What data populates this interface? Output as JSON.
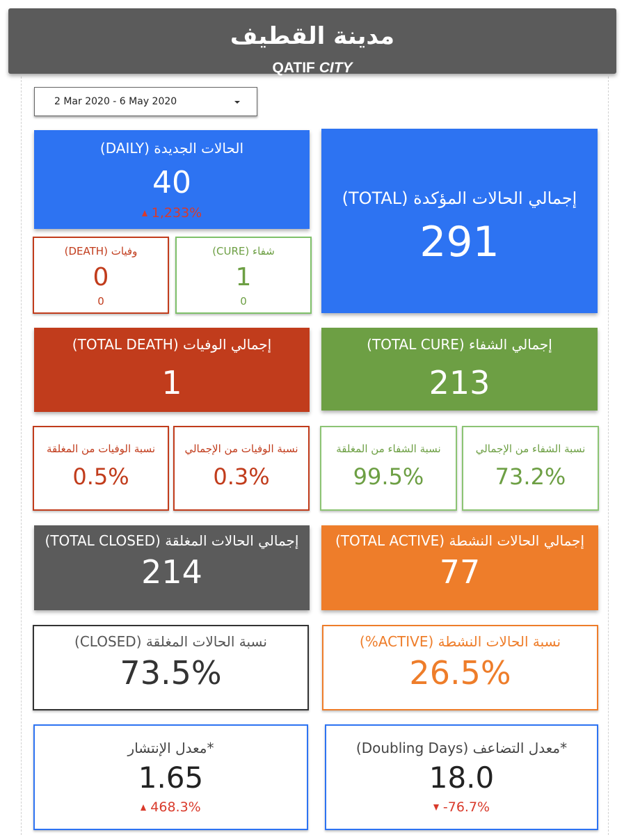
{
  "header": {
    "title_ar": "مدينة القطيف",
    "title_en_main": "QATIF ",
    "title_en_italic": "CITY"
  },
  "date_range": {
    "value": "2 Mar 2020 - 6 May 2020"
  },
  "daily": {
    "label": "الحالات الجديدة (DAILY)",
    "value": "40",
    "change": "1,233%"
  },
  "total": {
    "label": "إجمالي الحالات المؤكدة (TOTAL)",
    "value": "291"
  },
  "death": {
    "label": "وفيات (DEATH)",
    "value": "0",
    "sub": "0"
  },
  "cure": {
    "label": "شفاء (CURE)",
    "value": "1",
    "sub": "0"
  },
  "total_death": {
    "label": "إجمالي الوفيات (TOTAL DEATH)",
    "value": "1"
  },
  "total_cure": {
    "label": "إجمالي الشفاء (TOTAL CURE)",
    "value": "213"
  },
  "death_rate_closed": {
    "label": "نسبة الوفيات من المغلقة",
    "value": "0.5%"
  },
  "death_rate_total": {
    "label": "نسبة الوفيات من الإجمالي",
    "value": "0.3%"
  },
  "cure_rate_closed": {
    "label": "نسبة الشفاء من المغلقة",
    "value": "99.5%"
  },
  "cure_rate_total": {
    "label": "نسبة الشفاء من الإجمالي",
    "value": "73.2%"
  },
  "total_closed": {
    "label": "إجمالي الحالات المغلقة (TOTAL CLOSED)",
    "value": "214"
  },
  "total_active": {
    "label": "إجمالي الحالات النشطة (TOTAL ACTIVE)",
    "value": "77"
  },
  "closed_pct": {
    "label": "نسبة الحالات المغلقة (CLOSED)",
    "value": "73.5%"
  },
  "active_pct": {
    "label": "نسبة الحالات النشطة (ACTIVE%)",
    "value": "26.5%"
  },
  "spread_rate": {
    "label": "*معدل الإنتشار",
    "value": "1.65",
    "change": "468.3%"
  },
  "doubling": {
    "label": "*معدل التضاعف (Doubling Days)",
    "value": "18.0",
    "change": "-76.7%"
  },
  "colors": {
    "blue": "#2d73f2",
    "red": "#c13c1c",
    "green": "#6d9f44",
    "gray": "#5b5b5b",
    "orange": "#ee7d2a",
    "change_red": "#d93a2b"
  }
}
